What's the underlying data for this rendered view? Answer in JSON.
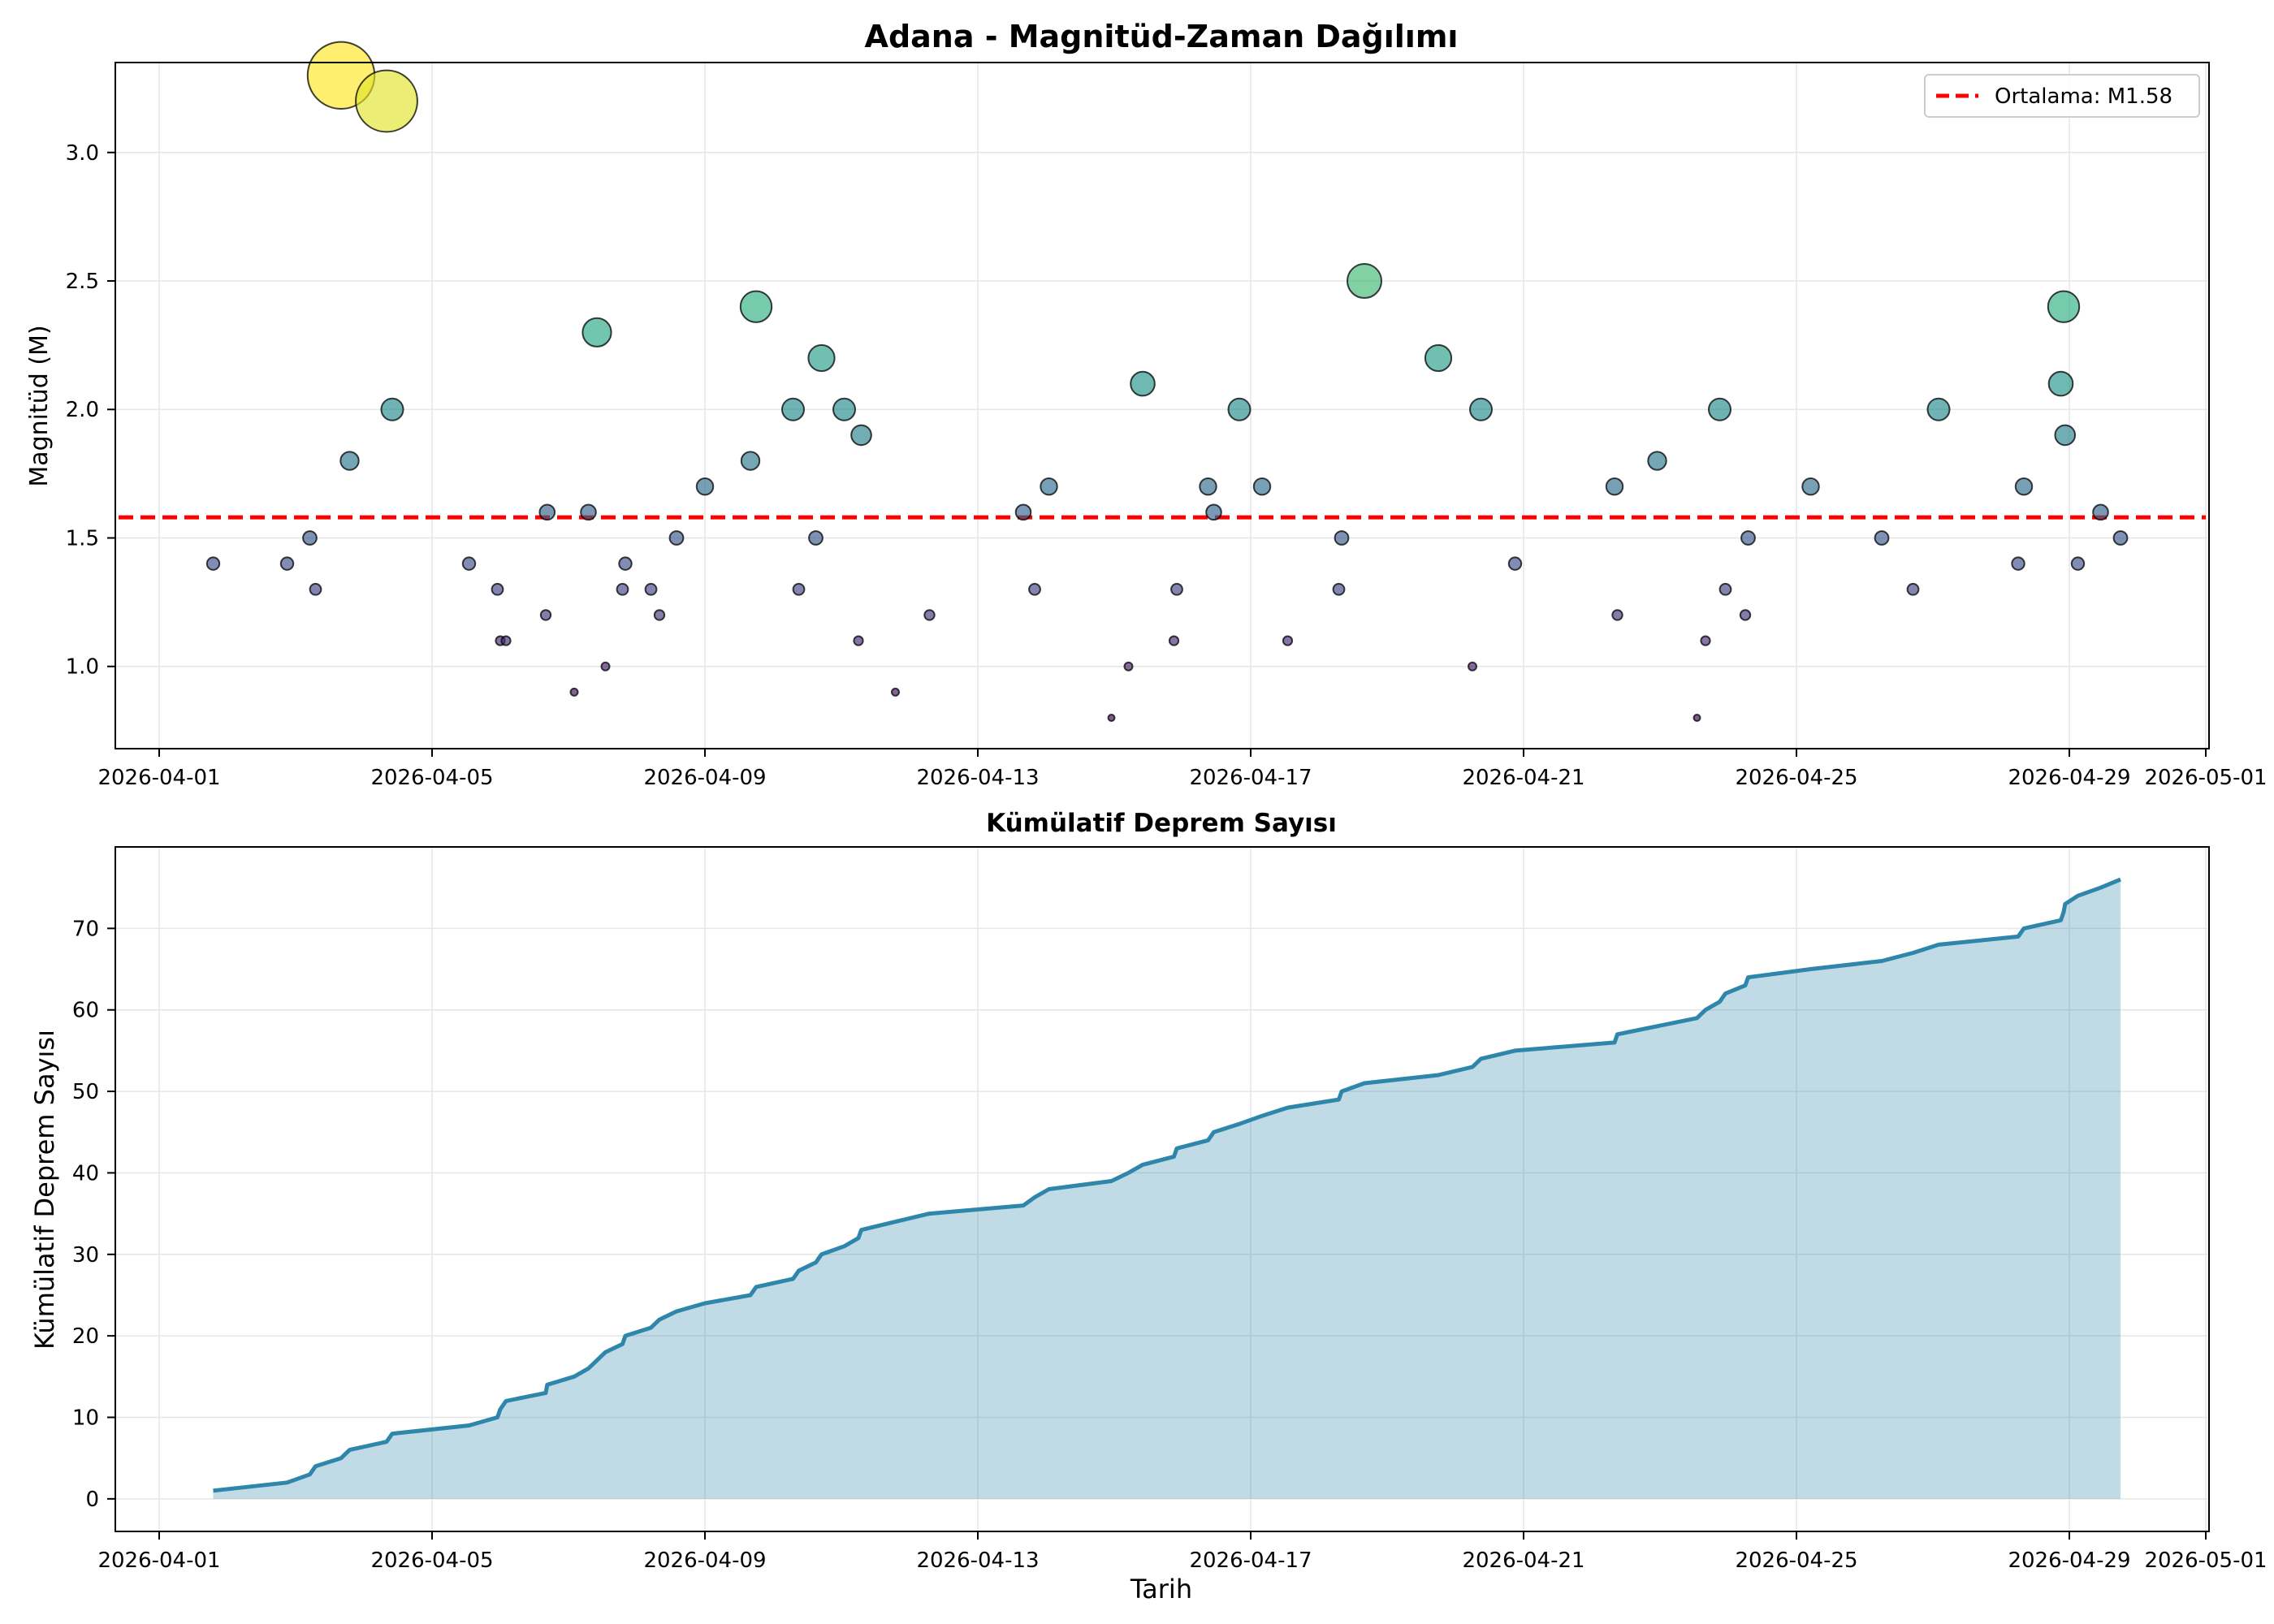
{
  "chart_data": [
    {
      "type": "scatter",
      "title": "Adana - Magnitüd-Zaman Dağılımı",
      "xlabel": "",
      "ylabel": "Magnitüd (M)",
      "x_type": "date",
      "xlim": [
        "2026-04-01",
        "2026-05-01"
      ],
      "ylim": [
        0.68,
        3.35
      ],
      "x_ticks": [
        "2026-04-01",
        "2026-04-05",
        "2026-04-09",
        "2026-04-13",
        "2026-04-17",
        "2026-04-21",
        "2026-04-25",
        "2026-04-29",
        "2026-05-01"
      ],
      "y_ticks": [
        "1.0",
        "1.5",
        "2.0",
        "2.5",
        "3.0"
      ],
      "grid": true,
      "legend_position": "top-right",
      "colormap": "viridis",
      "mean_line": {
        "value": 1.58,
        "label": "Ortalama: M1.58",
        "color": "#ff0000",
        "style": "dashed"
      },
      "points": [
        {
          "x": "2026-04-01 19:00",
          "y": 1.4
        },
        {
          "x": "2026-04-02 21:00",
          "y": 1.4
        },
        {
          "x": "2026-04-03 05:00",
          "y": 1.5
        },
        {
          "x": "2026-04-03 07:00",
          "y": 1.3
        },
        {
          "x": "2026-04-03 16:00",
          "y": 3.3
        },
        {
          "x": "2026-04-03 19:00",
          "y": 1.8
        },
        {
          "x": "2026-04-04 08:00",
          "y": 3.2
        },
        {
          "x": "2026-04-04 10:00",
          "y": 2.0
        },
        {
          "x": "2026-04-05 13:00",
          "y": 1.4
        },
        {
          "x": "2026-04-05 23:00",
          "y": 1.3
        },
        {
          "x": "2026-04-06 00:00",
          "y": 1.1
        },
        {
          "x": "2026-04-06 02:00",
          "y": 1.1
        },
        {
          "x": "2026-04-06 16:00",
          "y": 1.2
        },
        {
          "x": "2026-04-06 16:30",
          "y": 1.6
        },
        {
          "x": "2026-04-07 02:00",
          "y": 0.9
        },
        {
          "x": "2026-04-07 07:00",
          "y": 1.6
        },
        {
          "x": "2026-04-07 10:00",
          "y": 2.3
        },
        {
          "x": "2026-04-07 13:00",
          "y": 1.0
        },
        {
          "x": "2026-04-07 19:00",
          "y": 1.3
        },
        {
          "x": "2026-04-07 20:00",
          "y": 1.4
        },
        {
          "x": "2026-04-08 05:00",
          "y": 1.3
        },
        {
          "x": "2026-04-08 08:00",
          "y": 1.2
        },
        {
          "x": "2026-04-08 14:00",
          "y": 1.5
        },
        {
          "x": "2026-04-09 00:00",
          "y": 1.7
        },
        {
          "x": "2026-04-09 16:00",
          "y": 1.8
        },
        {
          "x": "2026-04-09 18:00",
          "y": 2.4
        },
        {
          "x": "2026-04-10 09:00",
          "y": 1.3
        },
        {
          "x": "2026-04-10 07:00",
          "y": 2.0
        },
        {
          "x": "2026-04-10 17:00",
          "y": 2.2
        },
        {
          "x": "2026-04-10 15:00",
          "y": 1.5
        },
        {
          "x": "2026-04-11 01:00",
          "y": 2.0
        },
        {
          "x": "2026-04-11 06:00",
          "y": 1.1
        },
        {
          "x": "2026-04-11 07:00",
          "y": 1.9
        },
        {
          "x": "2026-04-11 19:00",
          "y": 0.9
        },
        {
          "x": "2026-04-12 07:00",
          "y": 1.2
        },
        {
          "x": "2026-04-13 16:00",
          "y": 1.6
        },
        {
          "x": "2026-04-13 20:00",
          "y": 1.3
        },
        {
          "x": "2026-04-14 01:00",
          "y": 1.7
        },
        {
          "x": "2026-04-14 23:00",
          "y": 0.8
        },
        {
          "x": "2026-04-15 05:00",
          "y": 1.0
        },
        {
          "x": "2026-04-15 10:00",
          "y": 2.1
        },
        {
          "x": "2026-04-15 21:00",
          "y": 1.1
        },
        {
          "x": "2026-04-15 22:00",
          "y": 1.3
        },
        {
          "x": "2026-04-16 09:00",
          "y": 1.7
        },
        {
          "x": "2026-04-16 11:00",
          "y": 1.6
        },
        {
          "x": "2026-04-16 20:00",
          "y": 2.0
        },
        {
          "x": "2026-04-17 04:00",
          "y": 1.7
        },
        {
          "x": "2026-04-17 13:00",
          "y": 1.1
        },
        {
          "x": "2026-04-18 07:00",
          "y": 1.3
        },
        {
          "x": "2026-04-18 08:00",
          "y": 1.5
        },
        {
          "x": "2026-04-18 16:00",
          "y": 2.5
        },
        {
          "x": "2026-04-19 18:00",
          "y": 2.2
        },
        {
          "x": "2026-04-20 06:00",
          "y": 1.0
        },
        {
          "x": "2026-04-20 09:00",
          "y": 2.0
        },
        {
          "x": "2026-04-20 21:00",
          "y": 1.4
        },
        {
          "x": "2026-04-22 08:00",
          "y": 1.7
        },
        {
          "x": "2026-04-22 09:00",
          "y": 1.2
        },
        {
          "x": "2026-04-22 23:00",
          "y": 1.8
        },
        {
          "x": "2026-04-23 13:00",
          "y": 0.8
        },
        {
          "x": "2026-04-23 16:00",
          "y": 1.1
        },
        {
          "x": "2026-04-23 21:00",
          "y": 2.0
        },
        {
          "x": "2026-04-23 23:00",
          "y": 1.3
        },
        {
          "x": "2026-04-24 06:00",
          "y": 1.2
        },
        {
          "x": "2026-04-24 07:00",
          "y": 1.5
        },
        {
          "x": "2026-04-25 05:00",
          "y": 1.7
        },
        {
          "x": "2026-04-26 06:00",
          "y": 1.5
        },
        {
          "x": "2026-04-26 17:00",
          "y": 1.3
        },
        {
          "x": "2026-04-27 02:00",
          "y": 2.0
        },
        {
          "x": "2026-04-28 06:00",
          "y": 1.4
        },
        {
          "x": "2026-04-28 08:00",
          "y": 1.7
        },
        {
          "x": "2026-04-28 21:00",
          "y": 2.1
        },
        {
          "x": "2026-04-28 22:00",
          "y": 2.4
        },
        {
          "x": "2026-04-28 22:30",
          "y": 1.9
        },
        {
          "x": "2026-04-29 03:00",
          "y": 1.4
        },
        {
          "x": "2026-04-29 11:00",
          "y": 1.6
        },
        {
          "x": "2026-04-29 18:00",
          "y": 1.5
        }
      ]
    },
    {
      "type": "area",
      "title": "Kümülatif Deprem Sayısı",
      "xlabel": "Tarih",
      "ylabel": "Kümülatif Deprem Sayısı",
      "x_type": "date",
      "xlim": [
        "2026-04-01",
        "2026-05-01"
      ],
      "ylim": [
        -4,
        80
      ],
      "x_ticks": [
        "2026-04-01",
        "2026-04-05",
        "2026-04-09",
        "2026-04-13",
        "2026-04-17",
        "2026-04-21",
        "2026-04-25",
        "2026-04-29",
        "2026-05-01"
      ],
      "y_ticks": [
        "0",
        "10",
        "20",
        "30",
        "40",
        "50",
        "60",
        "70"
      ],
      "grid": true,
      "line_color": "#2e86ab",
      "fill_color": "#2e86ab",
      "fill_opacity": 0.3,
      "note": "Cumulative count of the events shown in the upper panel, in time order (1 through 76)."
    }
  ]
}
